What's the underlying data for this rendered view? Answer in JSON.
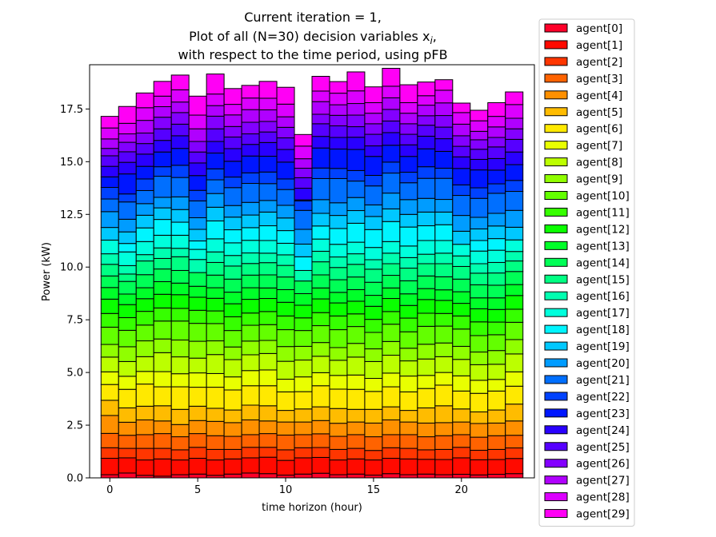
{
  "chart_data": {
    "type": "bar",
    "stacked": true,
    "title_lines": [
      "Current iteration = 1,",
      "Plot of all (N=30) decision variables x",
      "with respect to the time period, using pFB"
    ],
    "title_math": {
      "subscript": "i",
      "after": ","
    },
    "xlabel": "time horizon (hour)",
    "ylabel": "Power (kW)",
    "xlim": [
      -1.15,
      24.15
    ],
    "ylim": [
      0,
      19.6
    ],
    "xticks": [
      0,
      5,
      10,
      15,
      20
    ],
    "xtick_labels": [
      "0",
      "5",
      "10",
      "15",
      "20"
    ],
    "yticks": [
      0,
      2.5,
      5,
      7.5,
      10,
      12.5,
      15,
      17.5
    ],
    "ytick_labels": [
      "0.0",
      "2.5",
      "5.0",
      "7.5",
      "10.0",
      "12.5",
      "15.0",
      "17.5"
    ],
    "legend_position": "outside-right",
    "grid": false,
    "x": [
      0,
      1,
      2,
      3,
      4,
      5,
      6,
      7,
      8,
      9,
      10,
      11,
      12,
      13,
      14,
      15,
      16,
      17,
      18,
      19,
      20,
      21,
      22,
      23
    ],
    "series": [
      {
        "name": "agent[0]",
        "color": "#ff0029",
        "values": [
          0.15,
          0.23,
          0.12,
          0.08,
          0.15,
          0.18,
          0.12,
          0.18,
          0.23,
          0.2,
          0.13,
          0.18,
          0.22,
          0.15,
          0.18,
          0.13,
          0.2,
          0.15,
          0.18,
          0.15,
          0.17,
          0.14,
          0.17,
          0.2
        ]
      },
      {
        "name": "agent[1]",
        "color": "#ff0a00",
        "values": [
          0.78,
          0.72,
          0.73,
          0.82,
          0.7,
          0.75,
          0.73,
          0.72,
          0.72,
          0.78,
          0.7,
          0.77,
          0.75,
          0.7,
          0.72,
          0.72,
          0.73,
          0.75,
          0.7,
          0.72,
          0.78,
          0.72,
          0.7,
          0.72
        ]
      },
      {
        "name": "agent[2]",
        "color": "#ff3600",
        "values": [
          0.5,
          0.45,
          0.55,
          0.5,
          0.48,
          0.52,
          0.5,
          0.45,
          0.5,
          0.47,
          0.5,
          0.48,
          0.47,
          0.5,
          0.5,
          0.45,
          0.5,
          0.5,
          0.45,
          0.48,
          0.5,
          0.45,
          0.48,
          0.5
        ]
      },
      {
        "name": "agent[3]",
        "color": "#ff6300",
        "values": [
          0.68,
          0.62,
          0.65,
          0.7,
          0.62,
          0.65,
          0.65,
          0.62,
          0.6,
          0.65,
          0.7,
          0.62,
          0.65,
          0.62,
          0.65,
          0.65,
          0.62,
          0.65,
          0.62,
          0.65,
          0.6,
          0.62,
          0.65,
          0.6
        ]
      },
      {
        "name": "agent[4]",
        "color": "#ff9000",
        "values": [
          0.85,
          0.62,
          0.7,
          0.6,
          0.58,
          0.62,
          0.68,
          0.65,
          0.7,
          0.6,
          0.62,
          0.6,
          0.63,
          0.62,
          0.6,
          0.65,
          0.7,
          0.6,
          0.65,
          0.62,
          0.6,
          0.65,
          0.6,
          0.68
        ]
      },
      {
        "name": "agent[5]",
        "color": "#ffbc00",
        "values": [
          0.72,
          0.68,
          0.65,
          0.72,
          0.72,
          0.68,
          0.62,
          0.6,
          0.7,
          0.72,
          0.55,
          0.62,
          0.65,
          0.7,
          0.6,
          0.65,
          0.62,
          0.55,
          0.72,
          0.8,
          0.62,
          0.55,
          0.62,
          0.8
        ]
      },
      {
        "name": "agent[6]",
        "color": "#ffe900",
        "values": [
          0.75,
          0.88,
          1.05,
          0.9,
          1.07,
          0.9,
          1.0,
          0.95,
          0.92,
          0.95,
          0.88,
          0.82,
          1.0,
          0.92,
          0.95,
          0.85,
          0.95,
          0.88,
          0.92,
          0.98,
          0.85,
          0.88,
          0.9,
          0.85
        ]
      },
      {
        "name": "agent[7]",
        "color": "#e9ff00",
        "values": [
          0.6,
          0.62,
          0.6,
          0.72,
          0.62,
          0.68,
          0.65,
          0.62,
          0.72,
          0.75,
          0.6,
          0.7,
          0.62,
          0.65,
          0.68,
          0.62,
          0.65,
          0.75,
          0.62,
          0.6,
          0.72,
          0.62,
          0.55,
          0.68
        ]
      },
      {
        "name": "agent[8]",
        "color": "#bcff00",
        "values": [
          0.7,
          0.7,
          0.7,
          0.9,
          0.8,
          0.7,
          0.9,
          0.82,
          0.75,
          0.78,
          0.85,
          0.8,
          0.78,
          0.72,
          0.85,
          0.8,
          0.85,
          0.72,
          0.78,
          0.75,
          0.78,
          0.74,
          0.72,
          0.85
        ]
      },
      {
        "name": "agent[9]",
        "color": "#90ff00",
        "values": [
          0.6,
          0.7,
          0.75,
          0.65,
          0.8,
          0.8,
          0.65,
          0.6,
          0.65,
          0.62,
          0.7,
          0.65,
          0.65,
          0.6,
          0.65,
          0.6,
          0.65,
          0.6,
          0.7,
          0.65,
          0.62,
          0.6,
          0.65,
          0.68
        ]
      },
      {
        "name": "agent[10]",
        "color": "#63ff00",
        "values": [
          0.82,
          0.78,
          0.75,
          0.85,
          0.9,
          0.85,
          0.82,
          0.78,
          0.75,
          0.75,
          0.8,
          0.75,
          0.8,
          0.85,
          0.8,
          0.78,
          0.82,
          0.78,
          0.85,
          0.8,
          0.82,
          0.78,
          0.75,
          0.82
        ]
      },
      {
        "name": "agent[11]",
        "color": "#36ff00",
        "values": [
          0.65,
          0.6,
          0.65,
          0.62,
          0.6,
          0.62,
          0.6,
          0.65,
          0.58,
          0.62,
          0.65,
          0.6,
          0.62,
          0.65,
          0.6,
          0.62,
          0.6,
          0.65,
          0.62,
          0.6,
          0.62,
          0.65,
          0.6,
          0.62
        ]
      },
      {
        "name": "agent[12]",
        "color": "#0aff00",
        "values": [
          0.68,
          0.62,
          0.6,
          0.65,
          0.65,
          0.62,
          0.6,
          0.62,
          0.65,
          0.62,
          0.65,
          0.6,
          0.65,
          0.62,
          0.6,
          0.62,
          0.62,
          0.6,
          0.65,
          0.62,
          0.6,
          0.62,
          0.6,
          0.65
        ]
      },
      {
        "name": "agent[13]",
        "color": "#00ff29",
        "values": [
          0.55,
          0.5,
          0.52,
          0.6,
          0.55,
          0.52,
          0.5,
          0.55,
          0.55,
          0.5,
          0.6,
          0.55,
          0.52,
          0.5,
          0.55,
          0.52,
          0.5,
          0.55,
          0.52,
          0.5,
          0.55,
          0.52,
          0.55,
          0.52
        ]
      },
      {
        "name": "agent[14]",
        "color": "#00ff56",
        "values": [
          0.55,
          0.6,
          0.62,
          0.6,
          0.6,
          0.65,
          0.6,
          0.62,
          0.6,
          0.62,
          0.6,
          0.6,
          0.62,
          0.6,
          0.6,
          0.62,
          0.6,
          0.62,
          0.6,
          0.62,
          0.6,
          0.62,
          0.6,
          0.62
        ]
      },
      {
        "name": "agent[15]",
        "color": "#00ff83",
        "values": [
          0.55,
          0.35,
          0.65,
          0.5,
          0.65,
          0.0,
          0.6,
          0.62,
          0.55,
          0.58,
          0.55,
          0.0,
          0.62,
          0.58,
          0.6,
          0.62,
          0.55,
          0.6,
          0.58,
          0.62,
          0.6,
          0.55,
          0.58,
          0.5
        ]
      },
      {
        "name": "agent[16]",
        "color": "#00ffb0",
        "values": [
          0.5,
          0.4,
          0.3,
          0.5,
          0.4,
          0.62,
          0.5,
          0.5,
          0.5,
          0.45,
          0.5,
          0.5,
          0.5,
          0.5,
          0.5,
          0.45,
          0.5,
          0.5,
          0.45,
          0.5,
          0.5,
          0.45,
          0.5,
          0.45
        ]
      },
      {
        "name": "agent[17]",
        "color": "#00ffdc",
        "values": [
          0.65,
          0.65,
          0.62,
          0.6,
          0.62,
          0.48,
          0.62,
          0.6,
          0.6,
          0.6,
          0.55,
          0.0,
          0.58,
          0.6,
          0.55,
          0.58,
          0.55,
          0.55,
          0.65,
          0.6,
          0.55,
          0.6,
          0.58,
          0.55
        ]
      },
      {
        "name": "agent[18]",
        "color": "#00f5ff",
        "values": [
          0.0,
          0.4,
          0.65,
          0.75,
          0.62,
          0.4,
          0.85,
          0.62,
          0.6,
          0.7,
          0.6,
          0.65,
          0.62,
          0.75,
          0.9,
          0.85,
          0.95,
          0.9,
          0.7,
          0.75,
          0.0,
          0.5,
          0.55,
          0.0
        ]
      },
      {
        "name": "agent[19]",
        "color": "#00c8ff",
        "values": [
          0.6,
          0.55,
          0.6,
          0.55,
          0.6,
          0.55,
          0.65,
          0.6,
          0.6,
          0.65,
          0.6,
          0.6,
          0.6,
          0.62,
          0.6,
          0.62,
          0.6,
          0.6,
          0.65,
          0.6,
          0.62,
          0.55,
          0.6,
          0.6
        ]
      },
      {
        "name": "agent[20]",
        "color": "#009cff",
        "values": [
          0.75,
          0.6,
          0.55,
          0.5,
          0.6,
          0.55,
          0.65,
          0.55,
          0.6,
          0.55,
          0.6,
          0.7,
          0.65,
          0.6,
          0.62,
          0.55,
          0.75,
          0.7,
          0.65,
          0.6,
          0.75,
          0.55,
          0.6,
          0.8
        ]
      },
      {
        "name": "agent[21]",
        "color": "#006fff",
        "values": [
          0.6,
          0.82,
          0.62,
          1.0,
          0.92,
          0.8,
          0.65,
          0.85,
          0.9,
          0.8,
          0.75,
          0.9,
          1.0,
          1.15,
          0.78,
          0.9,
          0.95,
          0.8,
          0.95,
          1.0,
          0.95,
          0.9,
          0.95,
          0.9
        ]
      },
      {
        "name": "agent[22]",
        "color": "#0042ff",
        "values": [
          0.55,
          0.38,
          0.55,
          0.45,
          0.58,
          0.5,
          0.52,
          0.5,
          0.5,
          0.55,
          0.5,
          0.45,
          0.5,
          0.48,
          0.5,
          0.5,
          0.52,
          0.5,
          0.55,
          0.48,
          0.5,
          0.5,
          0.45,
          0.52
        ]
      },
      {
        "name": "agent[23]",
        "color": "#0016ff",
        "values": [
          0.5,
          0.95,
          0.6,
          0.7,
          0.8,
          0.7,
          0.75,
          0.75,
          0.8,
          0.75,
          0.8,
          0.05,
          0.95,
          0.92,
          1.0,
          0.9,
          0.8,
          0.75,
          0.85,
          0.8,
          0.78,
          0.85,
          0.65,
          0.75
        ]
      },
      {
        "name": "agent[24]",
        "color": "#2900ff",
        "values": [
          0.5,
          0.55,
          0.58,
          0.55,
          0.6,
          0.6,
          0.55,
          0.6,
          0.55,
          0.65,
          0.6,
          0.55,
          0.55,
          0.55,
          0.58,
          0.5,
          0.6,
          0.55,
          0.6,
          0.6,
          0.55,
          0.5,
          0.55,
          0.6
        ]
      },
      {
        "name": "agent[25]",
        "color": "#5600ff",
        "values": [
          0.5,
          0.5,
          0.5,
          0.55,
          0.55,
          0.52,
          0.6,
          0.55,
          0.5,
          0.5,
          0.55,
          0.5,
          0.6,
          0.55,
          0.5,
          0.55,
          0.55,
          0.5,
          0.52,
          0.55,
          0.5,
          0.48,
          0.55,
          0.6
        ]
      },
      {
        "name": "agent[26]",
        "color": "#8300ff",
        "values": [
          0.35,
          0.45,
          0.5,
          0.55,
          0.55,
          0.5,
          0.6,
          0.5,
          0.55,
          0.5,
          0.5,
          0.45,
          0.45,
          0.5,
          0.55,
          0.5,
          0.55,
          0.5,
          0.45,
          0.55,
          0.5,
          0.45,
          0.45,
          0.5
        ]
      },
      {
        "name": "agent[27]",
        "color": "#b000ff",
        "values": [
          0.45,
          0.4,
          0.6,
          0.5,
          0.5,
          0.6,
          0.5,
          0.55,
          0.6,
          0.55,
          0.5,
          0.45,
          0.6,
          0.5,
          0.55,
          0.5,
          0.55,
          0.5,
          0.5,
          0.6,
          0.55,
          0.4,
          0.5,
          0.5
        ]
      },
      {
        "name": "agent[28]",
        "color": "#dc00ff",
        "values": [
          0.52,
          0.5,
          0.6,
          0.5,
          0.58,
          0.65,
          0.55,
          0.5,
          0.55,
          0.55,
          0.6,
          0.6,
          0.5,
          0.55,
          0.6,
          0.5,
          0.55,
          0.5,
          0.45,
          0.6,
          0.55,
          0.5,
          0.5,
          0.65
        ]
      },
      {
        "name": "agent[29]",
        "color": "#ff00f5",
        "values": [
          0.55,
          0.8,
          0.7,
          0.7,
          0.7,
          0.9,
          0.95,
          0.75,
          0.6,
          0.8,
          0.8,
          0.55,
          0.7,
          0.55,
          0.9,
          0.75,
          0.85,
          0.85,
          0.65,
          0.5,
          0.45,
          0.5,
          0.65,
          0.6
        ]
      }
    ]
  }
}
